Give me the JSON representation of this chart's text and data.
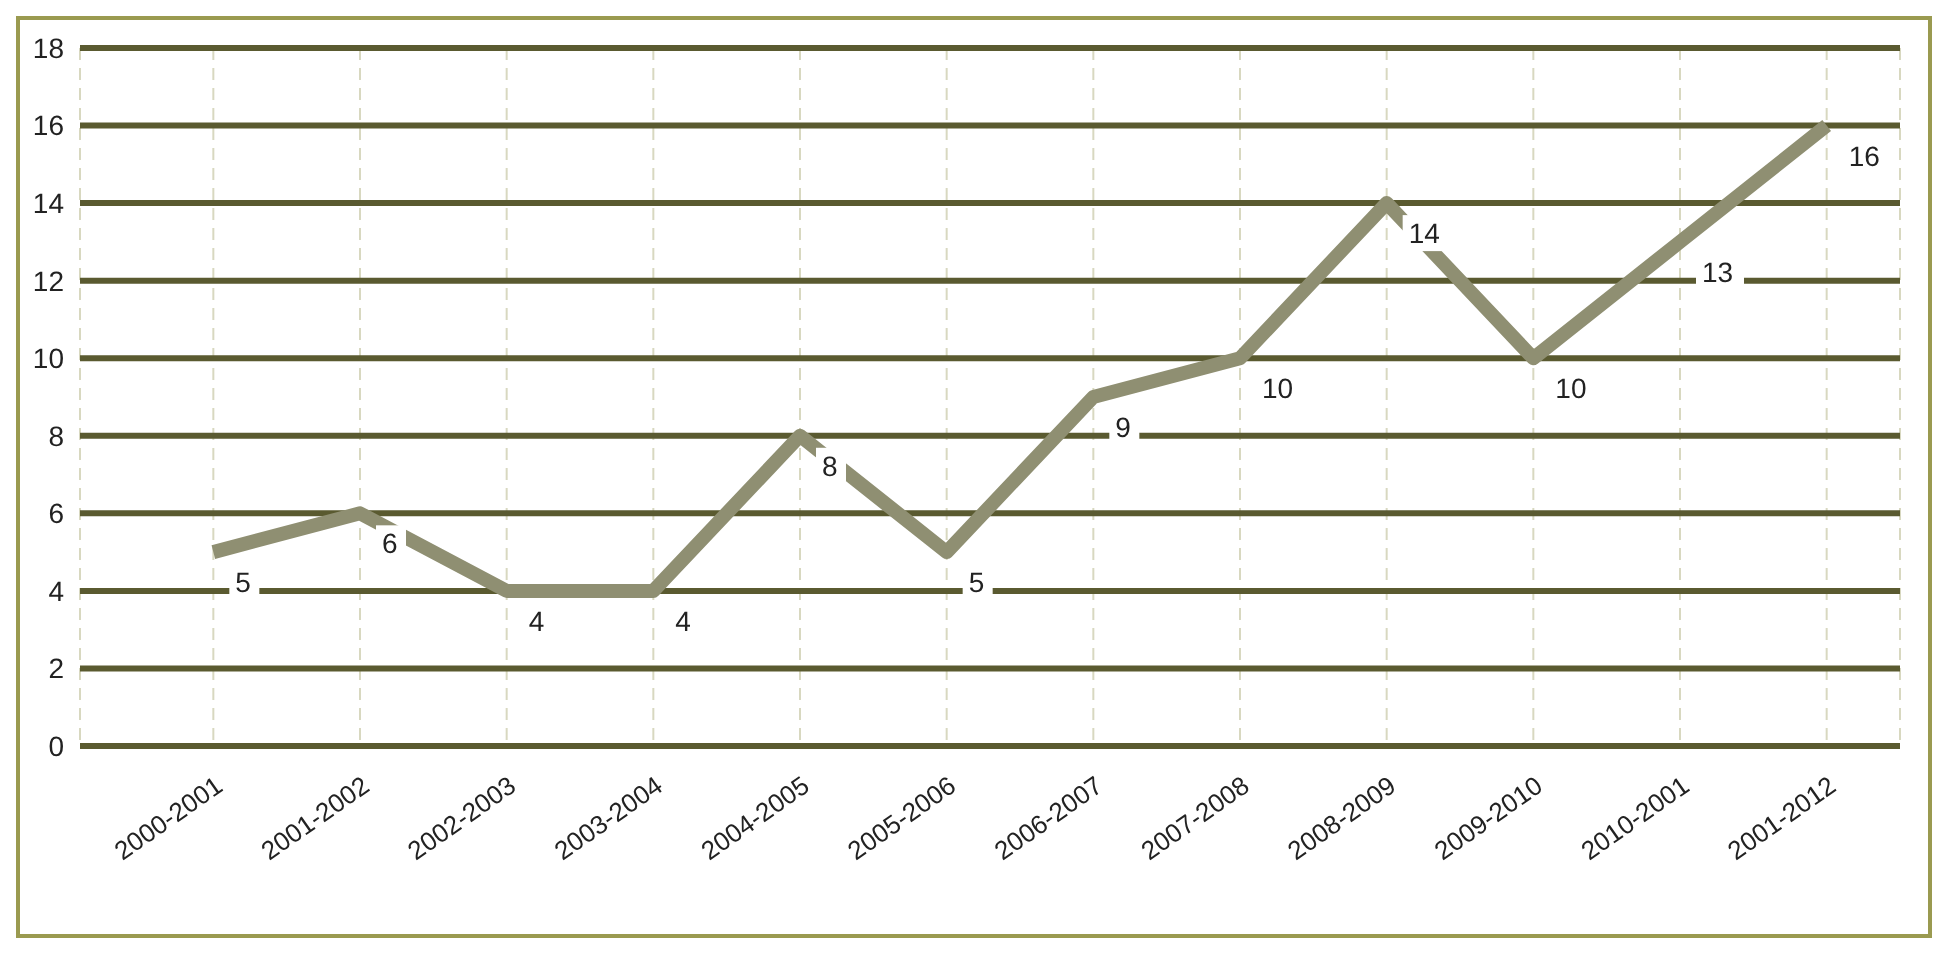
{
  "chart_data": {
    "type": "line",
    "categories": [
      "2000-2001",
      "2001-2002",
      "2002-2003",
      "2003-2004",
      "2004-2005",
      "2005-2006",
      "2006-2007",
      "2007-2008",
      "2008-2009",
      "2009-2010",
      "2010-2001",
      "2001-2012"
    ],
    "series": [
      {
        "color": "#8f8f72",
        "values": [
          5,
          6,
          4,
          4,
          8,
          5,
          9,
          10,
          14,
          10,
          13,
          16
        ]
      }
    ],
    "ylim": [
      0,
      18
    ],
    "yticks": [
      0,
      2,
      4,
      6,
      8,
      10,
      12,
      14,
      16,
      18
    ],
    "grid": true,
    "data_labels": true,
    "marker": "none",
    "line_style": "solid"
  }
}
